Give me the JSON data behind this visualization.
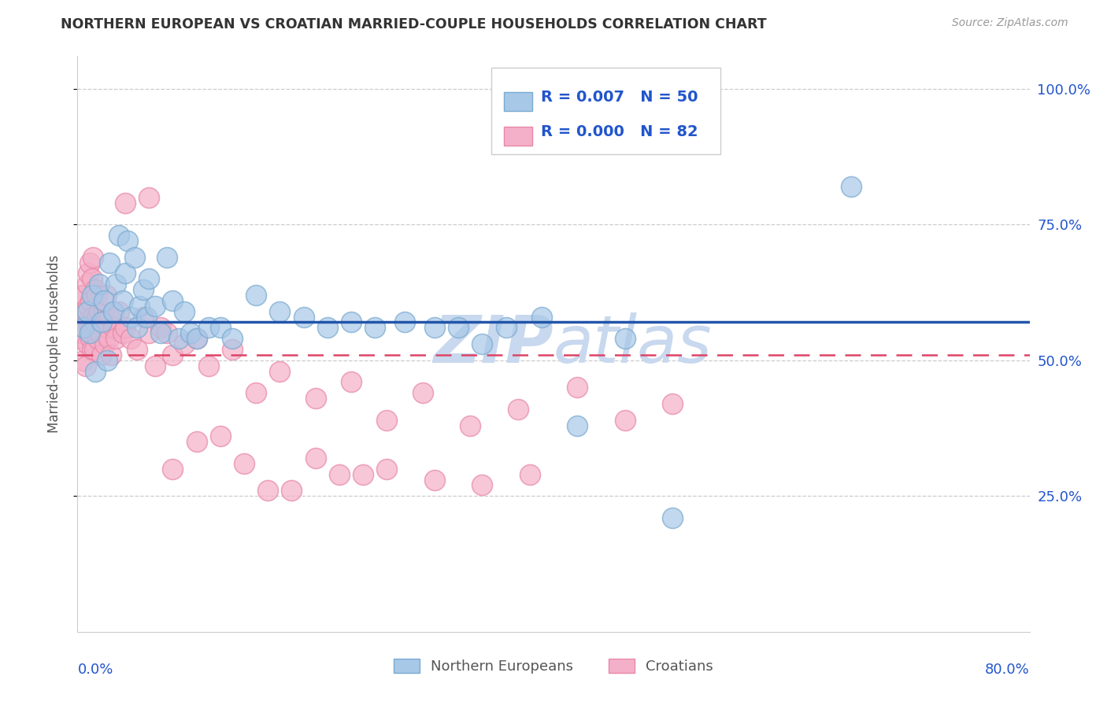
{
  "title": "NORTHERN EUROPEAN VS CROATIAN MARRIED-COUPLE HOUSEHOLDS CORRELATION CHART",
  "source": "Source: ZipAtlas.com",
  "ylabel": "Married-couple Households",
  "legend_label1": "Northern Europeans",
  "legend_label2": "Croatians",
  "R1": "0.007",
  "N1": "50",
  "R2": "0.000",
  "N2": "82",
  "blue_color": "#a8c8e8",
  "pink_color": "#f4b0c8",
  "blue_edge_color": "#7aaad0",
  "pink_edge_color": "#e888a8",
  "blue_line_color": "#2255aa",
  "pink_line_color": "#dd4466",
  "title_color": "#333333",
  "stats_color": "#2255cc",
  "watermark_color": "#c8d8ee",
  "blue_scatter_x": [
    0.005,
    0.008,
    0.01,
    0.012,
    0.015,
    0.018,
    0.02,
    0.022,
    0.025,
    0.027,
    0.03,
    0.032,
    0.035,
    0.038,
    0.04,
    0.042,
    0.045,
    0.048,
    0.05,
    0.052,
    0.055,
    0.058,
    0.06,
    0.065,
    0.07,
    0.075,
    0.08,
    0.085,
    0.09,
    0.095,
    0.1,
    0.11,
    0.12,
    0.13,
    0.15,
    0.17,
    0.19,
    0.21,
    0.23,
    0.25,
    0.275,
    0.3,
    0.32,
    0.34,
    0.36,
    0.39,
    0.42,
    0.46,
    0.5,
    0.65
  ],
  "blue_scatter_y": [
    0.56,
    0.59,
    0.55,
    0.62,
    0.48,
    0.64,
    0.57,
    0.61,
    0.5,
    0.68,
    0.59,
    0.64,
    0.73,
    0.61,
    0.66,
    0.72,
    0.58,
    0.69,
    0.56,
    0.6,
    0.63,
    0.58,
    0.65,
    0.6,
    0.55,
    0.69,
    0.61,
    0.54,
    0.59,
    0.55,
    0.54,
    0.56,
    0.56,
    0.54,
    0.62,
    0.59,
    0.58,
    0.56,
    0.57,
    0.56,
    0.57,
    0.56,
    0.56,
    0.53,
    0.56,
    0.58,
    0.38,
    0.54,
    0.21,
    0.82
  ],
  "pink_scatter_x": [
    0.002,
    0.003,
    0.004,
    0.004,
    0.005,
    0.006,
    0.006,
    0.007,
    0.007,
    0.008,
    0.008,
    0.009,
    0.009,
    0.01,
    0.01,
    0.011,
    0.011,
    0.012,
    0.012,
    0.013,
    0.013,
    0.014,
    0.014,
    0.015,
    0.015,
    0.016,
    0.016,
    0.017,
    0.018,
    0.019,
    0.02,
    0.021,
    0.022,
    0.023,
    0.024,
    0.025,
    0.026,
    0.027,
    0.028,
    0.03,
    0.032,
    0.035,
    0.038,
    0.04,
    0.045,
    0.05,
    0.055,
    0.06,
    0.065,
    0.07,
    0.075,
    0.08,
    0.09,
    0.1,
    0.11,
    0.13,
    0.15,
    0.17,
    0.2,
    0.23,
    0.26,
    0.29,
    0.33,
    0.37,
    0.42,
    0.46,
    0.5,
    0.04,
    0.06,
    0.08,
    0.1,
    0.12,
    0.14,
    0.16,
    0.18,
    0.2,
    0.22,
    0.24,
    0.26,
    0.3,
    0.34,
    0.38
  ],
  "pink_scatter_y": [
    0.54,
    0.58,
    0.55,
    0.62,
    0.5,
    0.56,
    0.62,
    0.59,
    0.49,
    0.64,
    0.53,
    0.6,
    0.66,
    0.56,
    0.68,
    0.54,
    0.61,
    0.52,
    0.65,
    0.58,
    0.69,
    0.52,
    0.56,
    0.63,
    0.57,
    0.58,
    0.62,
    0.54,
    0.59,
    0.55,
    0.51,
    0.57,
    0.59,
    0.53,
    0.62,
    0.56,
    0.54,
    0.58,
    0.51,
    0.56,
    0.54,
    0.59,
    0.55,
    0.56,
    0.54,
    0.52,
    0.58,
    0.55,
    0.49,
    0.56,
    0.55,
    0.51,
    0.53,
    0.54,
    0.49,
    0.52,
    0.44,
    0.48,
    0.43,
    0.46,
    0.39,
    0.44,
    0.38,
    0.41,
    0.45,
    0.39,
    0.42,
    0.79,
    0.8,
    0.3,
    0.35,
    0.36,
    0.31,
    0.26,
    0.26,
    0.32,
    0.29,
    0.29,
    0.3,
    0.28,
    0.27,
    0.29
  ],
  "blue_trend_y": 0.57,
  "pink_trend_y": 0.51,
  "xmin": 0.0,
  "xmax": 0.8,
  "ymin": 0.0,
  "ymax": 1.06,
  "ytick_positions": [
    0.25,
    0.5,
    0.75,
    1.0
  ],
  "ytick_labels": [
    "25.0%",
    "50.0%",
    "75.0%",
    "100.0%"
  ],
  "grid_color": "#cccccc",
  "grid_style": "--"
}
